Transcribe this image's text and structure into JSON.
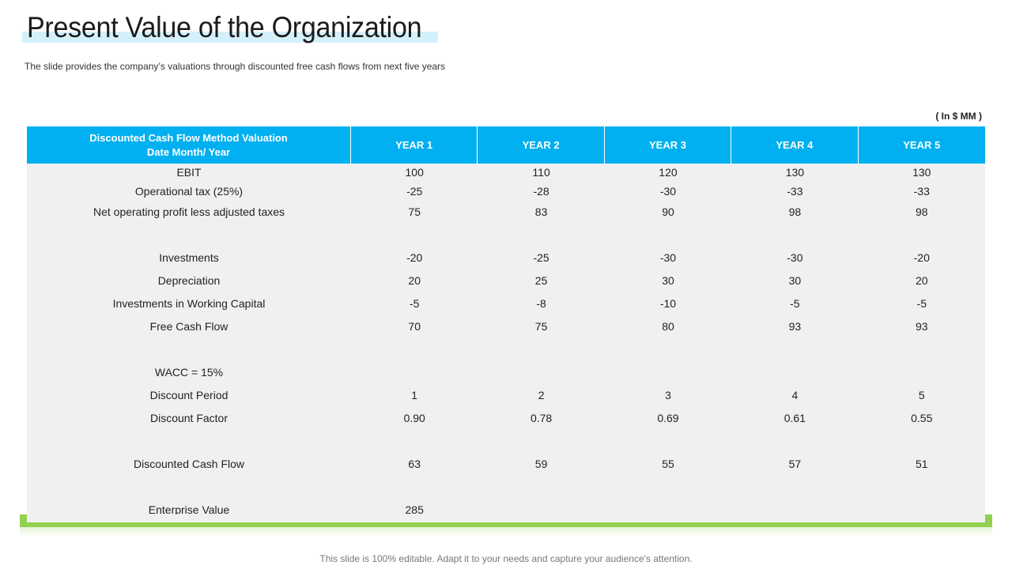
{
  "title": "Present Value of the Organization",
  "subtitle": "The slide provides  the company’s valuations  through discounted free cash flows from next five  years",
  "unit": "( In $ MM )",
  "table": {
    "header_line1": "Discounted Cash Flow Method Valuation",
    "header_line2": "Date Month/ Year",
    "columns": [
      "YEAR 1",
      "YEAR 2",
      "YEAR 3",
      "YEAR 4",
      "YEAR 5"
    ],
    "rows": [
      {
        "label": "EBIT",
        "values": [
          "100",
          "110",
          "120",
          "130",
          "130"
        ]
      },
      {
        "label": "Operational tax (25%)",
        "values": [
          "-25",
          "-28",
          "-30",
          "-33",
          "-33"
        ]
      },
      {
        "label": "Net operating profit less adjusted taxes",
        "values": [
          "75",
          "83",
          "90",
          "98",
          "98"
        ]
      },
      {
        "label": "Investments",
        "values": [
          "-20",
          "-25",
          "-30",
          "-30",
          "-20"
        ]
      },
      {
        "label": "Depreciation",
        "values": [
          "20",
          "25",
          "30",
          "30",
          "20"
        ]
      },
      {
        "label": "Investments in Working Capital",
        "values": [
          "-5",
          "-8",
          "-10",
          "-5",
          "-5"
        ]
      },
      {
        "label": "Free Cash Flow",
        "values": [
          "70",
          "75",
          "80",
          "93",
          "93"
        ]
      },
      {
        "label": "WACC = 15%",
        "values": [
          "",
          "",
          "",
          "",
          ""
        ]
      },
      {
        "label": "Discount Period",
        "values": [
          "1",
          "2",
          "3",
          "4",
          "5"
        ]
      },
      {
        "label": "Discount Factor",
        "values": [
          "0.90",
          "0.78",
          "0.69",
          "0.61",
          "0.55"
        ]
      },
      {
        "label": "Discounted Cash Flow",
        "values": [
          "63",
          "59",
          "55",
          "57",
          "51"
        ]
      },
      {
        "label": "Enterprise Value",
        "values": [
          "285",
          "",
          "",
          "",
          ""
        ]
      }
    ]
  },
  "colors": {
    "header_bg": "#00b0f0",
    "table_bg": "#f0f0f0",
    "accent_green": "#92d050",
    "title_highlight": "#d4f1fb"
  },
  "footer": "This slide is 100% editable. Adapt it to your needs and capture your audience's attention."
}
